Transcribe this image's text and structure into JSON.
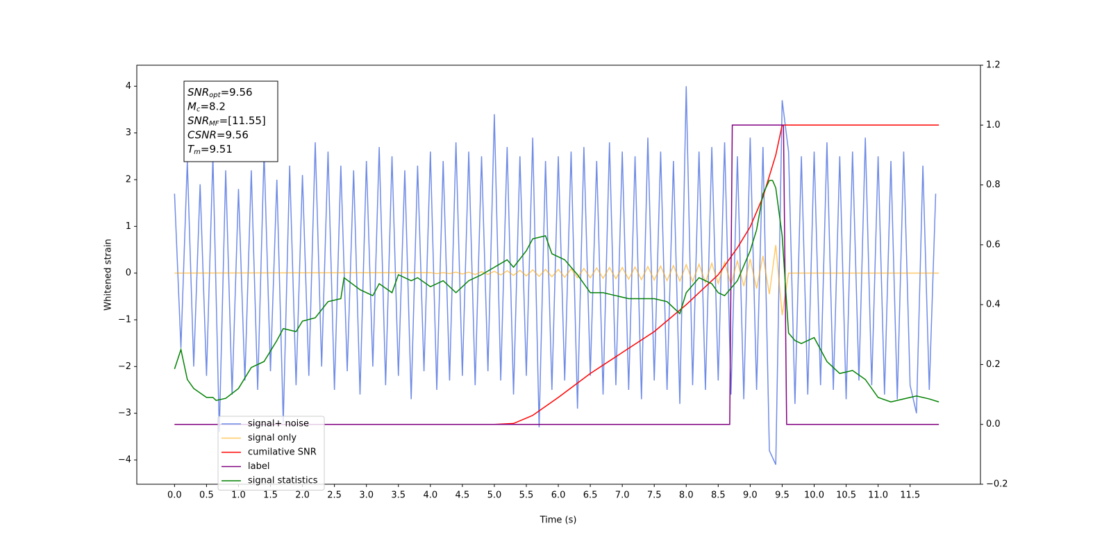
{
  "chart_data": {
    "type": "line",
    "xlabel": "Time (s)",
    "ylabel": "Whitened strain",
    "xlim": [
      -0.59,
      12.6
    ],
    "ylim": [
      -4.52,
      4.45
    ],
    "y2lim": [
      -0.2,
      1.2
    ],
    "xticks": [
      {
        "value": 0,
        "label": "0.0"
      },
      0.5,
      {
        "value": 1,
        "label": "1.0"
      },
      1.5,
      {
        "value": 2,
        "label": "2.0"
      },
      2.5,
      {
        "value": 3,
        "label": "3.0"
      },
      3.5,
      {
        "value": 4,
        "label": "4.0"
      },
      4.5,
      {
        "value": 5,
        "label": "5.0"
      },
      5.5,
      {
        "value": 6,
        "label": "6.0"
      },
      6.5,
      {
        "value": 7,
        "label": "7.0"
      },
      7.5,
      {
        "value": 8,
        "label": "8.0"
      },
      8.5,
      {
        "value": 9,
        "label": "9.0"
      },
      9.5,
      {
        "value": 10,
        "label": "10.0"
      },
      10.5,
      {
        "value": 11,
        "label": "11.0"
      },
      11.5
    ],
    "yticks": [
      {
        "value": -4,
        "label": "−4"
      },
      {
        "value": -3,
        "label": "−3"
      },
      {
        "value": -2,
        "label": "−2"
      },
      {
        "value": -1,
        "label": "−1"
      },
      0,
      1,
      2,
      3,
      4
    ],
    "y2ticks": [
      {
        "value": -0.2,
        "label": "−0.2"
      },
      {
        "value": 0,
        "label": "0.0"
      },
      0.2,
      0.4,
      0.6,
      0.8,
      {
        "value": 1,
        "label": "1.0"
      },
      1.2
    ],
    "legend": "lower left",
    "annotation": [
      {
        "symbol": "SNR",
        "sub": "opt",
        "text": "=9.56"
      },
      {
        "symbol": "M",
        "sub": "c",
        "text": "=8.2"
      },
      {
        "symbol": "SNR",
        "sub": "MF",
        "text": "=[11.55]"
      },
      {
        "symbol": "CSNR",
        "text": "=9.56"
      },
      {
        "symbol": "T",
        "sub": "m",
        "text": "=9.51"
      }
    ],
    "series": [
      {
        "name": "signal+ noise",
        "color": "#6f8be6",
        "x": [
          0,
          0.1,
          0.2,
          0.3,
          0.4,
          0.5,
          0.6,
          0.7,
          0.8,
          0.9,
          1,
          1.1,
          1.2,
          1.3,
          1.4,
          1.5,
          1.6,
          1.7,
          1.8,
          1.9,
          2,
          2.1,
          2.2,
          2.3,
          2.4,
          2.5,
          2.6,
          2.7,
          2.8,
          2.9,
          3,
          3.1,
          3.2,
          3.3,
          3.4,
          3.5,
          3.6,
          3.7,
          3.8,
          3.9,
          4,
          4.1,
          4.2,
          4.3,
          4.4,
          4.5,
          4.6,
          4.7,
          4.8,
          4.9,
          5,
          5.1,
          5.2,
          5.3,
          5.4,
          5.5,
          5.6,
          5.7,
          5.8,
          5.9,
          6,
          6.1,
          6.2,
          6.3,
          6.4,
          6.5,
          6.6,
          6.7,
          6.8,
          6.9,
          7,
          7.1,
          7.2,
          7.3,
          7.4,
          7.5,
          7.6,
          7.7,
          7.8,
          7.9,
          8,
          8.1,
          8.2,
          8.3,
          8.4,
          8.5,
          8.6,
          8.7,
          8.8,
          8.9,
          9,
          9.1,
          9.2,
          9.3,
          9.4,
          9.5,
          9.6,
          9.7,
          9.8,
          9.9,
          10,
          10.1,
          10.2,
          10.3,
          10.4,
          10.5,
          10.6,
          10.7,
          10.8,
          10.9,
          11,
          11.1,
          11.2,
          11.3,
          11.4,
          11.5,
          11.6,
          11.7,
          11.8,
          11.9
        ],
        "values": [
          1.7,
          -1.6,
          2.4,
          -2.0,
          1.9,
          -2.2,
          2.5,
          -3.4,
          2.2,
          -2.6,
          1.8,
          -2.3,
          2.2,
          -2.5,
          2.6,
          -2.1,
          2.0,
          -3.2,
          2.3,
          -2.4,
          2.1,
          -2.2,
          2.8,
          -2.0,
          2.6,
          -2.5,
          2.3,
          -2.1,
          2.2,
          -2.6,
          2.4,
          -2.0,
          2.7,
          -2.4,
          2.5,
          -2.2,
          2.2,
          -2.7,
          2.3,
          -2.1,
          2.6,
          -2.5,
          2.4,
          -2.3,
          2.8,
          -2.2,
          2.6,
          -2.4,
          2.5,
          -2.1,
          3.4,
          -2.3,
          2.7,
          -2.6,
          2.5,
          -2.2,
          2.9,
          -3.3,
          2.4,
          -2.5,
          2.5,
          -2.3,
          2.6,
          -2.9,
          2.7,
          -2.2,
          2.4,
          -2.6,
          2.8,
          -2.4,
          2.6,
          -2.5,
          2.5,
          -2.7,
          2.9,
          -2.3,
          2.6,
          -2.5,
          2.4,
          -2.8,
          4.0,
          -2.4,
          2.6,
          -2.5,
          2.7,
          -2.3,
          2.8,
          -2.6,
          2.5,
          -2.7,
          2.9,
          -2.5,
          2.7,
          -3.8,
          -4.1,
          3.7,
          2.6,
          -2.8,
          2.5,
          -2.6,
          2.6,
          -2.4,
          2.8,
          -2.5,
          2.5,
          -2.7,
          2.6,
          -2.3,
          2.9,
          -2.4,
          2.5,
          -2.6,
          2.4,
          -2.7,
          2.6,
          -2.4,
          -3.0,
          2.3,
          -2.5,
          1.7
        ]
      },
      {
        "name": "signal only",
        "color": "#ffa500",
        "x": [
          0,
          4.0,
          4.1,
          4.2,
          4.3,
          4.4,
          4.5,
          4.6,
          4.7,
          4.8,
          4.9,
          5.0,
          5.1,
          5.2,
          5.3,
          5.4,
          5.5,
          5.6,
          5.7,
          5.8,
          5.9,
          6.0,
          6.1,
          6.2,
          6.3,
          6.4,
          6.5,
          6.6,
          6.7,
          6.8,
          6.9,
          7.0,
          7.1,
          7.2,
          7.3,
          7.4,
          7.5,
          7.6,
          7.7,
          7.8,
          7.9,
          8.0,
          8.1,
          8.2,
          8.3,
          8.4,
          8.5,
          8.6,
          8.7,
          8.8,
          8.9,
          9.0,
          9.1,
          9.2,
          9.3,
          9.4,
          9.5,
          9.6,
          11.95
        ],
        "values": [
          0,
          0.01,
          -0.01,
          0.01,
          -0.01,
          0.02,
          -0.02,
          0.02,
          -0.03,
          0.03,
          -0.03,
          0.04,
          -0.04,
          0.05,
          -0.05,
          0.06,
          -0.06,
          0.07,
          -0.07,
          0.08,
          -0.08,
          0.08,
          -0.09,
          0.09,
          -0.1,
          0.1,
          -0.1,
          0.11,
          -0.11,
          0.12,
          -0.12,
          0.12,
          -0.13,
          0.13,
          -0.14,
          0.14,
          -0.15,
          0.15,
          -0.16,
          0.16,
          -0.17,
          0.18,
          -0.18,
          0.19,
          -0.2,
          0.21,
          -0.22,
          0.23,
          -0.24,
          0.26,
          -0.28,
          0.3,
          -0.33,
          0.37,
          -0.45,
          0.6,
          -0.9,
          0,
          0
        ]
      },
      {
        "name": "cumilative SNR",
        "color": "#ff0000",
        "axis": "y2",
        "x": [
          0,
          5.0,
          5.3,
          5.6,
          6.0,
          6.5,
          7.0,
          7.5,
          8.0,
          8.5,
          8.8,
          9.0,
          9.2,
          9.4,
          9.5,
          11.95
        ],
        "values": [
          0,
          0,
          0.003,
          0.03,
          0.09,
          0.17,
          0.24,
          0.31,
          0.4,
          0.5,
          0.59,
          0.66,
          0.76,
          0.9,
          1,
          1
        ]
      },
      {
        "name": "label",
        "color": "#800080",
        "axis": "y2",
        "x": [
          0,
          8.68,
          8.72,
          9.52,
          9.57,
          11.95
        ],
        "values": [
          0,
          0,
          1,
          1,
          0,
          0
        ]
      },
      {
        "name": "signal statistics",
        "color": "#008000",
        "axis": "y2",
        "x": [
          0,
          0.1,
          0.2,
          0.3,
          0.5,
          0.6,
          0.65,
          0.8,
          1.0,
          1.2,
          1.4,
          1.6,
          1.7,
          1.9,
          2.0,
          2.2,
          2.4,
          2.6,
          2.65,
          2.9,
          3.1,
          3.2,
          3.4,
          3.5,
          3.7,
          3.8,
          4.0,
          4.2,
          4.4,
          4.6,
          4.8,
          5.0,
          5.2,
          5.3,
          5.5,
          5.6,
          5.8,
          5.9,
          6.1,
          6.3,
          6.5,
          6.7,
          6.9,
          7.1,
          7.2,
          7.5,
          7.7,
          7.9,
          8.0,
          8.2,
          8.4,
          8.5,
          8.6,
          8.8,
          9.0,
          9.1,
          9.2,
          9.3,
          9.35,
          9.4,
          9.5,
          9.6,
          9.7,
          9.8,
          10.0,
          10.2,
          10.4,
          10.6,
          10.8,
          11.0,
          11.2,
          11.4,
          11.6,
          11.8,
          11.95
        ],
        "values": [
          0.185,
          0.25,
          0.15,
          0.12,
          0.09,
          0.09,
          0.08,
          0.087,
          0.12,
          0.19,
          0.21,
          0.28,
          0.32,
          0.31,
          0.345,
          0.356,
          0.41,
          0.42,
          0.49,
          0.45,
          0.43,
          0.47,
          0.44,
          0.5,
          0.48,
          0.49,
          0.46,
          0.48,
          0.44,
          0.48,
          0.5,
          0.525,
          0.55,
          0.525,
          0.58,
          0.62,
          0.63,
          0.57,
          0.55,
          0.5,
          0.44,
          0.44,
          0.43,
          0.42,
          0.42,
          0.42,
          0.41,
          0.37,
          0.44,
          0.49,
          0.47,
          0.44,
          0.43,
          0.48,
          0.58,
          0.65,
          0.77,
          0.815,
          0.815,
          0.79,
          0.63,
          0.305,
          0.28,
          0.27,
          0.29,
          0.21,
          0.17,
          0.18,
          0.15,
          0.09,
          0.075,
          0.085,
          0.095,
          0.085,
          0.075
        ]
      }
    ]
  }
}
